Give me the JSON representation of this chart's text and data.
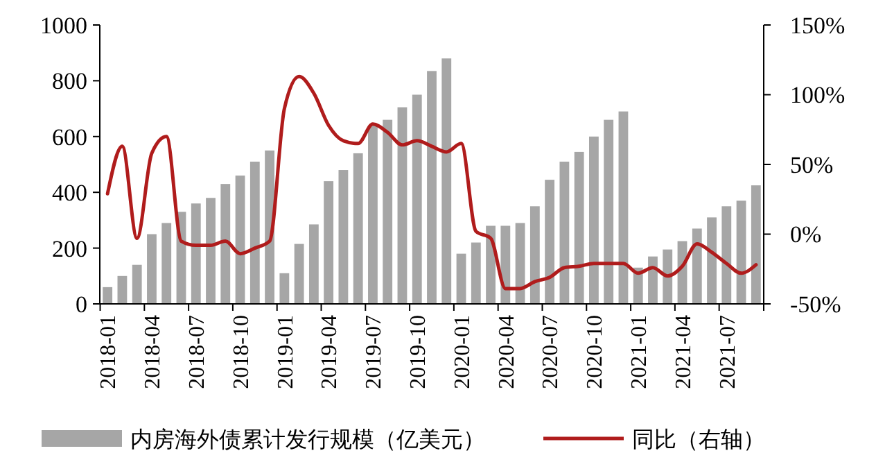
{
  "chart_data": {
    "type": "bar",
    "categories": [
      "2018-01",
      null,
      null,
      "2018-04",
      null,
      null,
      "2018-07",
      null,
      null,
      "2018-10",
      null,
      null,
      "2019-01",
      null,
      null,
      "2019-04",
      null,
      null,
      "2019-07",
      null,
      null,
      "2019-10",
      null,
      null,
      "2020-01",
      null,
      null,
      "2020-04",
      null,
      null,
      "2020-07",
      null,
      null,
      "2020-10",
      null,
      null,
      "2021-01",
      null,
      null,
      "2021-04",
      null,
      null,
      "2021-07",
      null,
      null
    ],
    "series": [
      {
        "name": "内房海外债累计发行规模（亿美元）",
        "color": "#a6a6a6",
        "values": [
          60,
          100,
          140,
          250,
          290,
          330,
          360,
          380,
          430,
          460,
          510,
          550,
          110,
          215,
          285,
          440,
          480,
          540,
          640,
          660,
          705,
          750,
          835,
          880,
          180,
          220,
          280,
          280,
          290,
          350,
          445,
          510,
          545,
          600,
          660,
          690,
          130,
          170,
          195,
          225,
          270,
          310,
          350,
          370,
          425
        ]
      },
      {
        "name": "同比（右轴）",
        "type": "line",
        "axis": "y2",
        "color": "#b01c1c",
        "values": [
          29,
          63,
          -3,
          58,
          70,
          -5,
          -8,
          -8,
          -5,
          -14,
          -10,
          -5,
          90,
          113,
          101,
          78,
          67,
          65,
          79,
          73,
          64,
          67,
          63,
          59,
          65,
          2,
          -3,
          -39,
          -39,
          -34,
          -31,
          -24,
          -23,
          -21,
          -21,
          -21,
          -28,
          -24,
          -30,
          -23,
          -7,
          -13,
          -21,
          -28,
          -22
        ]
      }
    ],
    "ylim": [
      0,
      1000
    ],
    "yticks": [
      0,
      200,
      400,
      600,
      800,
      1000
    ],
    "y2lim": [
      -50,
      150
    ],
    "y2ticks": [
      {
        "value": -50,
        "label": "-50%"
      },
      {
        "value": 0,
        "label": "0%"
      },
      {
        "value": 50,
        "label": "50%"
      },
      {
        "value": 100,
        "label": "100%"
      },
      {
        "value": 150,
        "label": "150%"
      }
    ],
    "grid": false,
    "legend": "bottom"
  }
}
